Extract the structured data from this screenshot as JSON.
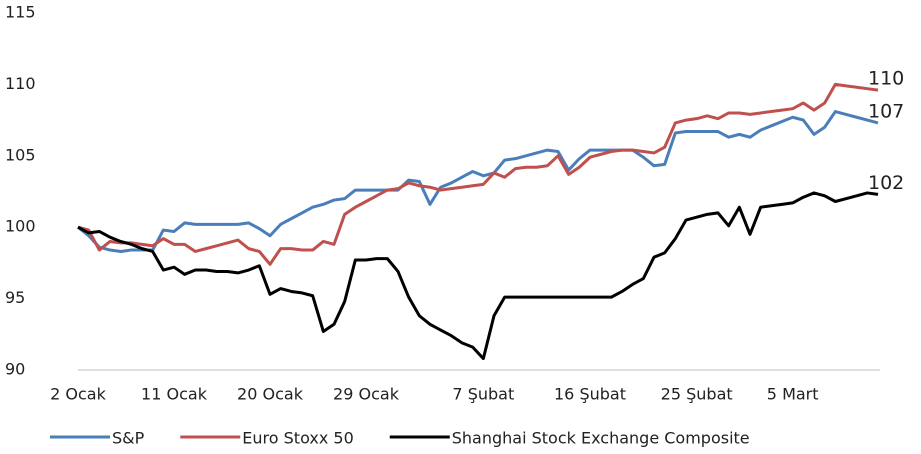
{
  "chart_data": {
    "type": "line",
    "categories": [
      "2 Ocak",
      null,
      null,
      null,
      null,
      null,
      null,
      null,
      null,
      "11 Ocak",
      null,
      null,
      null,
      null,
      null,
      null,
      null,
      null,
      "20 Ocak",
      null,
      null,
      null,
      null,
      null,
      null,
      null,
      null,
      "29 Ocak",
      null,
      null,
      null,
      null,
      null,
      null,
      null,
      null,
      null,
      null,
      "7 Şubat",
      null,
      null,
      null,
      null,
      null,
      null,
      null,
      null,
      null,
      "16 Şubat",
      null,
      null,
      null,
      null,
      null,
      null,
      null,
      null,
      null,
      "25 Şubat",
      null,
      null,
      null,
      null,
      null,
      null,
      null,
      null,
      "5 Mart",
      null,
      null,
      null,
      null,
      null,
      null,
      null,
      null
    ],
    "ylim": [
      90,
      115
    ],
    "yticks": [
      90,
      95,
      100,
      105,
      110,
      115
    ],
    "grid": false,
    "series": [
      {
        "name": "S&P",
        "color": "#4a7ebb",
        "end_label": "107",
        "values": [
          100,
          99.4,
          98.6,
          98.4,
          98.3,
          98.4,
          98.4,
          98.4,
          99.8,
          99.7,
          100.3,
          100.2,
          100.2,
          100.2,
          100.2,
          100.2,
          100.3,
          99.9,
          99.4,
          100.2,
          100.6,
          101,
          101.4,
          101.6,
          101.9,
          102,
          102.6,
          102.6,
          102.6,
          102.6,
          102.6,
          103.3,
          103.2,
          101.6,
          102.8,
          103.1,
          103.5,
          103.9,
          103.6,
          103.8,
          104.7,
          104.8,
          105,
          105.2,
          105.4,
          105.3,
          104,
          104.8,
          105.4,
          105.4,
          105.4,
          105.4,
          105.4,
          104.9,
          104.3,
          104.4,
          106.6,
          106.7,
          106.7,
          106.7,
          106.7,
          106.3,
          106.5,
          106.3,
          106.8,
          107.1,
          107.4,
          107.7,
          107.5,
          106.5,
          107,
          108.1,
          107.9,
          107.7,
          107.5,
          107.3
        ]
      },
      {
        "name": "Euro Stoxx 50",
        "color": "#c0504d",
        "end_label": "110",
        "values": [
          100,
          99.8,
          98.4,
          99,
          98.9,
          98.9,
          98.8,
          98.7,
          99.2,
          98.8,
          98.8,
          98.3,
          98.5,
          98.7,
          98.9,
          99.1,
          98.5,
          98.3,
          97.4,
          98.5,
          98.5,
          98.4,
          98.4,
          99,
          98.8,
          100.9,
          101.4,
          101.8,
          102.2,
          102.6,
          102.7,
          103.1,
          102.9,
          102.8,
          102.6,
          102.7,
          102.8,
          102.9,
          103,
          103.8,
          103.5,
          104.1,
          104.2,
          104.2,
          104.3,
          105,
          103.7,
          104.2,
          104.9,
          105.1,
          105.3,
          105.4,
          105.4,
          105.3,
          105.2,
          105.6,
          107.3,
          107.5,
          107.6,
          107.8,
          107.6,
          108,
          108,
          107.9,
          108,
          108.1,
          108.2,
          108.3,
          108.7,
          108.2,
          108.7,
          110,
          109.9,
          109.8,
          109.7,
          109.6
        ]
      },
      {
        "name": "Shanghai Stock Exchange Composite",
        "color": "#000000",
        "end_label": "102",
        "values": [
          100,
          99.6,
          99.7,
          99.3,
          99,
          98.8,
          98.5,
          98.3,
          97,
          97.2,
          96.7,
          97,
          97,
          96.9,
          96.9,
          96.8,
          97,
          97.3,
          95.3,
          95.7,
          95.5,
          95.4,
          95.2,
          92.7,
          93.2,
          94.8,
          97.7,
          97.7,
          97.8,
          97.8,
          96.9,
          95.1,
          93.8,
          93.2,
          92.8,
          92.4,
          91.9,
          91.6,
          90.8,
          93.8,
          95.1,
          95.1,
          95.1,
          95.1,
          95.1,
          95.1,
          95.1,
          95.1,
          95.1,
          95.1,
          95.1,
          95.5,
          96,
          96.4,
          97.9,
          98.2,
          99.2,
          100.5,
          100.7,
          100.9,
          101,
          100.1,
          101.4,
          99.5,
          101.4,
          101.5,
          101.6,
          101.7,
          102.1,
          102.4,
          102.2,
          101.8,
          102,
          102.2,
          102.4,
          102.3
        ]
      }
    ]
  }
}
